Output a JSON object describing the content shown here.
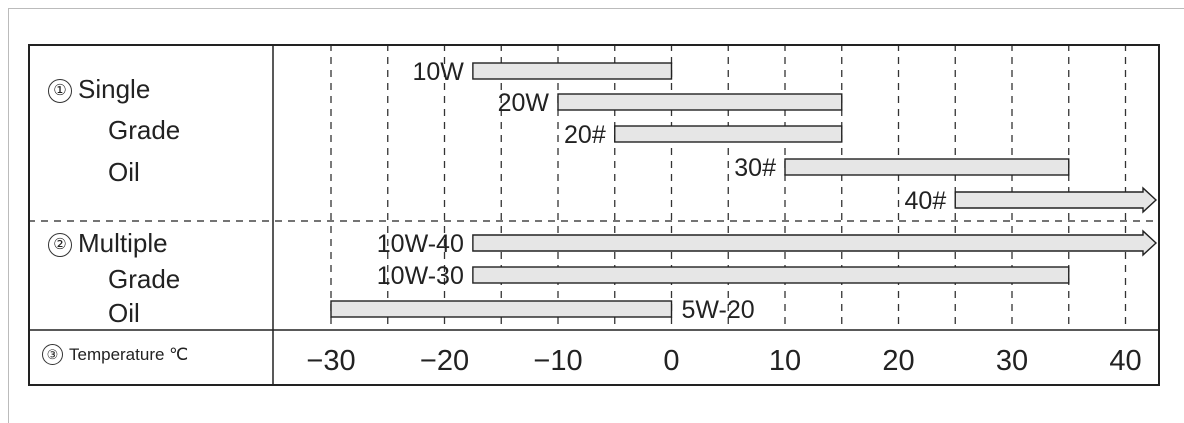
{
  "chart_data": {
    "type": "bar",
    "orientation": "horizontal-range",
    "xlim": [
      -35,
      42
    ],
    "ticks": [
      "-30",
      "-20",
      "-10",
      "0",
      "10",
      "20",
      "30",
      "40"
    ],
    "tick_values": [
      -30,
      -20,
      -10,
      0,
      10,
      20,
      30,
      40
    ],
    "grid_values": [
      -30,
      -25,
      -20,
      -15,
      -10,
      -5,
      0,
      5,
      10,
      15,
      20,
      25,
      30,
      35,
      40
    ],
    "groups": [
      {
        "number": "①",
        "lines": [
          "Single",
          "Grade",
          "Oil"
        ]
      },
      {
        "number": "②",
        "lines": [
          "Multiple",
          "Grade",
          "Oil"
        ]
      }
    ],
    "axis_row": {
      "number": "③",
      "label": "Temperature ℃"
    },
    "bars": [
      {
        "name": "10W",
        "from": -17.5,
        "to": 0,
        "arrow": false,
        "label_side": "left",
        "group": 0
      },
      {
        "name": "20W",
        "from": -10,
        "to": 15,
        "arrow": false,
        "label_side": "left",
        "group": 0
      },
      {
        "name": "20#",
        "from": -5,
        "to": 15,
        "arrow": false,
        "label_side": "left",
        "group": 0
      },
      {
        "name": "30#",
        "from": 10,
        "to": 35,
        "arrow": false,
        "label_side": "left",
        "group": 0
      },
      {
        "name": "40#",
        "from": 25,
        "to": 42,
        "arrow": true,
        "label_side": "left",
        "group": 0
      },
      {
        "name": "10W-40",
        "from": -17.5,
        "to": 42,
        "arrow": true,
        "label_side": "left",
        "group": 1
      },
      {
        "name": "10W-30",
        "from": -17.5,
        "to": 35,
        "arrow": false,
        "label_side": "left",
        "group": 1
      },
      {
        "name": "5W-20",
        "from": -30,
        "to": 0,
        "arrow": false,
        "label_side": "right",
        "group": 1
      }
    ],
    "colors": {
      "bar_fill": "#e6e6e6",
      "stroke": "#222222",
      "grid": "#333333"
    }
  }
}
